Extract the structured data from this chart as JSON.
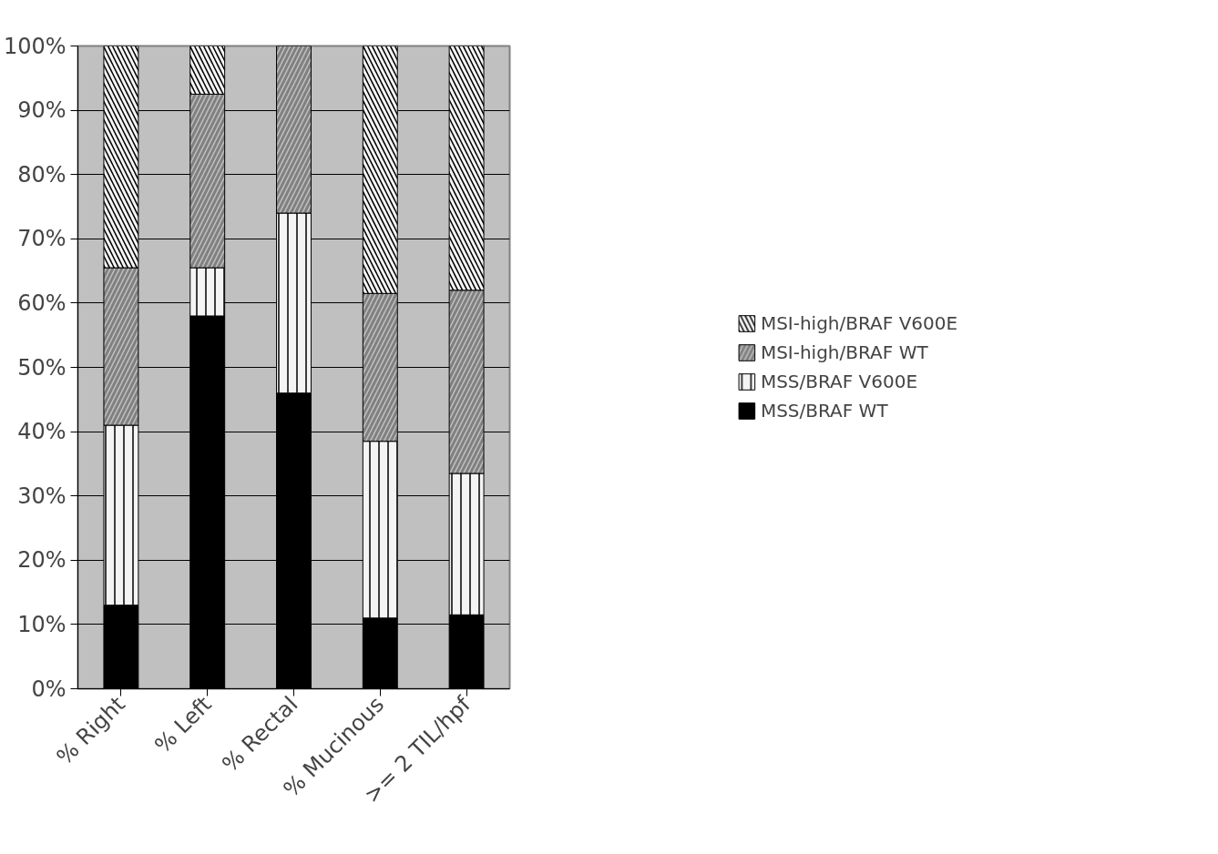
{
  "chart_data": {
    "type": "bar",
    "stacked": true,
    "categories": [
      "% Right",
      "% Left",
      "% Rectal",
      "% Mucinous",
      ">= 2 TIL/hpf"
    ],
    "series": [
      {
        "name": "MSS/BRAF WT",
        "color": "#000000",
        "values": [
          13,
          58,
          46,
          11,
          11.5
        ]
      },
      {
        "name": "MSS/BRAF V600E",
        "color": "#f4f4f4",
        "values": [
          28,
          7.5,
          28,
          27.5,
          22
        ]
      },
      {
        "name": "MSI-high/BRAF WT",
        "color": "#808080",
        "values": [
          24.5,
          27,
          26,
          23,
          28.5
        ]
      },
      {
        "name": "MSI-high/BRAF V600E",
        "color": "#f4f4f4",
        "values": [
          34.5,
          7.5,
          0,
          38.5,
          38
        ]
      }
    ],
    "ylim": [
      0,
      100
    ],
    "yticks": [
      {
        "value": 0,
        "label": "0%"
      },
      {
        "value": 10,
        "label": "10%"
      },
      {
        "value": 20,
        "label": "20%"
      },
      {
        "value": 30,
        "label": "30%"
      },
      {
        "value": 40,
        "label": "40%"
      },
      {
        "value": 50,
        "label": "50%"
      },
      {
        "value": 60,
        "label": "60%"
      },
      {
        "value": 70,
        "label": "70%"
      },
      {
        "value": 80,
        "label": "80%"
      },
      {
        "value": 90,
        "label": "90%"
      },
      {
        "value": 100,
        "label": "100%"
      }
    ],
    "grid": "y",
    "legend": "right"
  }
}
